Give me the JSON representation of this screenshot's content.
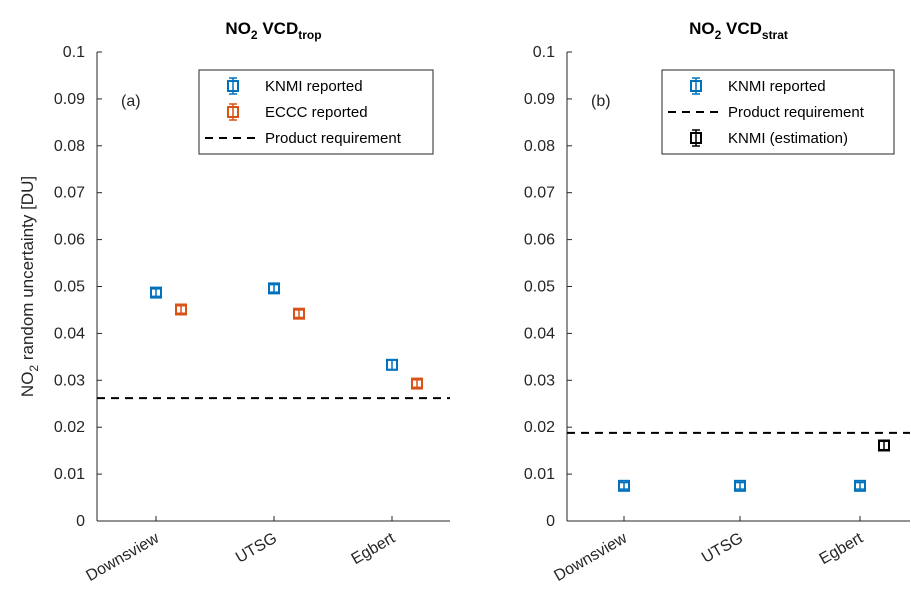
{
  "chart_data": [
    {
      "type": "scatter",
      "panel_label": "(a)",
      "title": "NO",
      "title_sub": "2",
      "title_mid": " VCD",
      "title_tail": "trop",
      "ylabel": "NO",
      "ylabel_sub": "2",
      "ylabel_tail": " random uncertainty [DU]",
      "ylim": [
        0,
        0.1
      ],
      "yticks": [
        "0",
        "0.01",
        "0.02",
        "0.03",
        "0.04",
        "0.05",
        "0.06",
        "0.07",
        "0.08",
        "0.09",
        "0.1"
      ],
      "categories": [
        "Downsview",
        "UTSG",
        "Egbert"
      ],
      "grid": false,
      "legend_position": "top-right",
      "series": [
        {
          "name": "KNMI reported",
          "color": "#0072BD",
          "values": [
            0.0487,
            0.0496,
            0.0333
          ],
          "errors": [
            0.0008,
            0.0008,
            0.001
          ]
        },
        {
          "name": "ECCC reported",
          "color": "#D95319",
          "values": [
            0.0451,
            0.0442,
            0.0293
          ],
          "errors": [
            0.0008,
            0.0008,
            0.0008
          ]
        }
      ],
      "reference_line": {
        "name": "Product requirement",
        "value": 0.0262
      }
    },
    {
      "type": "scatter",
      "panel_label": "(b)",
      "title": "NO",
      "title_sub": "2",
      "title_mid": " VCD",
      "title_tail": "strat",
      "ylim": [
        0,
        0.1
      ],
      "yticks": [
        "0",
        "0.01",
        "0.02",
        "0.03",
        "0.04",
        "0.05",
        "0.06",
        "0.07",
        "0.08",
        "0.09",
        "0.1"
      ],
      "categories": [
        "Downsview",
        "UTSG",
        "Egbert"
      ],
      "grid": false,
      "legend_position": "top-right",
      "series": [
        {
          "name": "KNMI reported",
          "color": "#0072BD",
          "values": [
            0.0075,
            0.0075,
            0.0075
          ],
          "errors": [
            0.0007,
            0.0007,
            0.0007
          ]
        },
        {
          "name": "KNMI (estimation)",
          "color": "#000000",
          "values": [
            null,
            null,
            0.0161
          ],
          "errors": [
            null,
            null,
            0.0009
          ]
        }
      ],
      "reference_line": {
        "name": "Product requirement",
        "value": 0.0188
      }
    }
  ]
}
